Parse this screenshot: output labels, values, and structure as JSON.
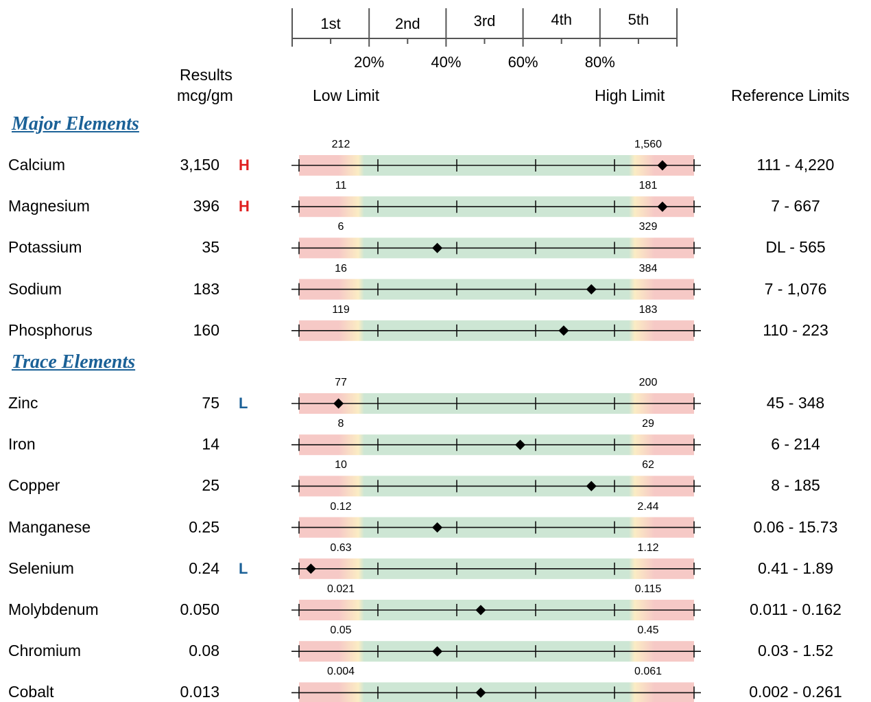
{
  "headers": {
    "results": "Results",
    "units": "mcg/gm",
    "low_limit": "Low Limit",
    "high_limit": "High Limit",
    "reference_limits": "Reference Limits"
  },
  "quintiles": [
    "1st",
    "2nd",
    "3rd",
    "4th",
    "5th"
  ],
  "percentiles": [
    "20%",
    "40%",
    "60%",
    "80%"
  ],
  "colors": {
    "low_zone": "#f6c9c6",
    "transition": "#fbecc4",
    "normal_zone": "#cde6d4",
    "high_flag": "#e02020",
    "low_flag": "#1b6197",
    "section_title": "#1b6197"
  },
  "chart_data": {
    "type": "range-marker",
    "sections": [
      {
        "title": "Major Elements",
        "elements": [
          {
            "name": "Calcium",
            "result": "3,150",
            "flag": "H",
            "low_limit": "212",
            "high_limit": "1,560",
            "reference": "111 - 4,220",
            "position_pct": 92
          },
          {
            "name": "Magnesium",
            "result": "396",
            "flag": "H",
            "low_limit": "11",
            "high_limit": "181",
            "reference": "7 - 667",
            "position_pct": 92
          },
          {
            "name": "Potassium",
            "result": "35",
            "flag": "",
            "low_limit": "6",
            "high_limit": "329",
            "reference": "DL - 565",
            "position_pct": 35
          },
          {
            "name": "Sodium",
            "result": "183",
            "flag": "",
            "low_limit": "16",
            "high_limit": "384",
            "reference": "7 - 1,076",
            "position_pct": 74
          },
          {
            "name": "Phosphorus",
            "result": "160",
            "flag": "",
            "low_limit": "119",
            "high_limit": "183",
            "reference": "110 - 223",
            "position_pct": 67
          }
        ]
      },
      {
        "title": "Trace Elements",
        "elements": [
          {
            "name": "Zinc",
            "result": "75",
            "flag": "L",
            "low_limit": "77",
            "high_limit": "200",
            "reference": "45 - 348",
            "position_pct": 10
          },
          {
            "name": "Iron",
            "result": "14",
            "flag": "",
            "low_limit": "8",
            "high_limit": "29",
            "reference": "6 - 214",
            "position_pct": 56
          },
          {
            "name": "Copper",
            "result": "25",
            "flag": "",
            "low_limit": "10",
            "high_limit": "62",
            "reference": "8 - 185",
            "position_pct": 74
          },
          {
            "name": "Manganese",
            "result": "0.25",
            "flag": "",
            "low_limit": "0.12",
            "high_limit": "2.44",
            "reference": "0.06 - 15.73",
            "position_pct": 35
          },
          {
            "name": "Selenium",
            "result": "0.24",
            "flag": "L",
            "low_limit": "0.63",
            "high_limit": "1.12",
            "reference": "0.41 - 1.89",
            "position_pct": 3
          },
          {
            "name": "Molybdenum",
            "result": "0.050",
            "flag": "",
            "low_limit": "0.021",
            "high_limit": "0.115",
            "reference": "0.011 - 0.162",
            "position_pct": 46
          },
          {
            "name": "Chromium",
            "result": "0.08",
            "flag": "",
            "low_limit": "0.05",
            "high_limit": "0.45",
            "reference": "0.03 - 1.52",
            "position_pct": 35
          },
          {
            "name": "Cobalt",
            "result": "0.013",
            "flag": "",
            "low_limit": "0.004",
            "high_limit": "0.061",
            "reference": "0.002 - 0.261",
            "position_pct": 46
          }
        ]
      }
    ]
  }
}
